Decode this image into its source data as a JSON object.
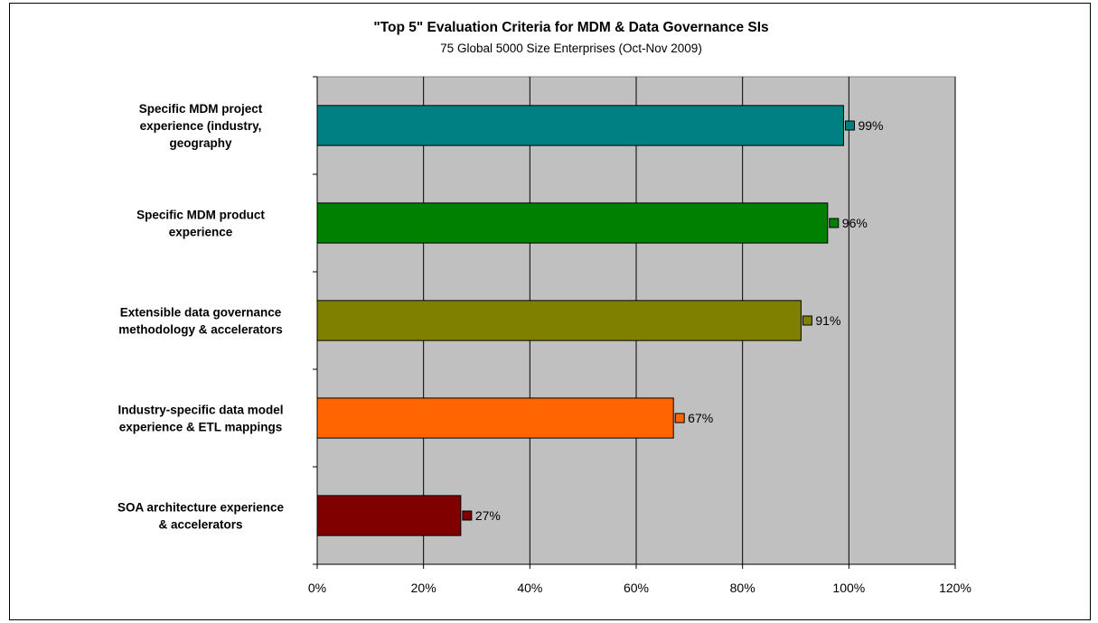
{
  "chart_data": {
    "type": "bar",
    "orientation": "horizontal",
    "title": "\"Top 5\" Evaluation Criteria for MDM & Data Governance SIs",
    "subtitle": "75 Global 5000 Size Enterprises (Oct-Nov 2009)",
    "categories": [
      [
        "Specific MDM project",
        "experience (industry,",
        "geography"
      ],
      [
        "Specific MDM product",
        "experience"
      ],
      [
        "Extensible data governance",
        "methodology & accelerators"
      ],
      [
        "Industry-specific data model",
        "experience & ETL mappings"
      ],
      [
        "SOA architecture experience",
        "& accelerators"
      ]
    ],
    "values": [
      0.99,
      0.96,
      0.91,
      0.67,
      0.27
    ],
    "data_labels": [
      "99%",
      "96%",
      "91%",
      "67%",
      "27%"
    ],
    "colors": [
      "#008080",
      "#008000",
      "#808000",
      "#FF6600",
      "#800000"
    ],
    "xlim": [
      0,
      1.2
    ],
    "xticks": [
      0,
      0.2,
      0.4,
      0.6,
      0.8,
      1.0,
      1.2
    ],
    "xtick_labels": [
      "0%",
      "20%",
      "40%",
      "60%",
      "80%",
      "100%",
      "120%"
    ],
    "plot_background": "#C0C0C0",
    "grid": "vertical",
    "legend": "none"
  }
}
